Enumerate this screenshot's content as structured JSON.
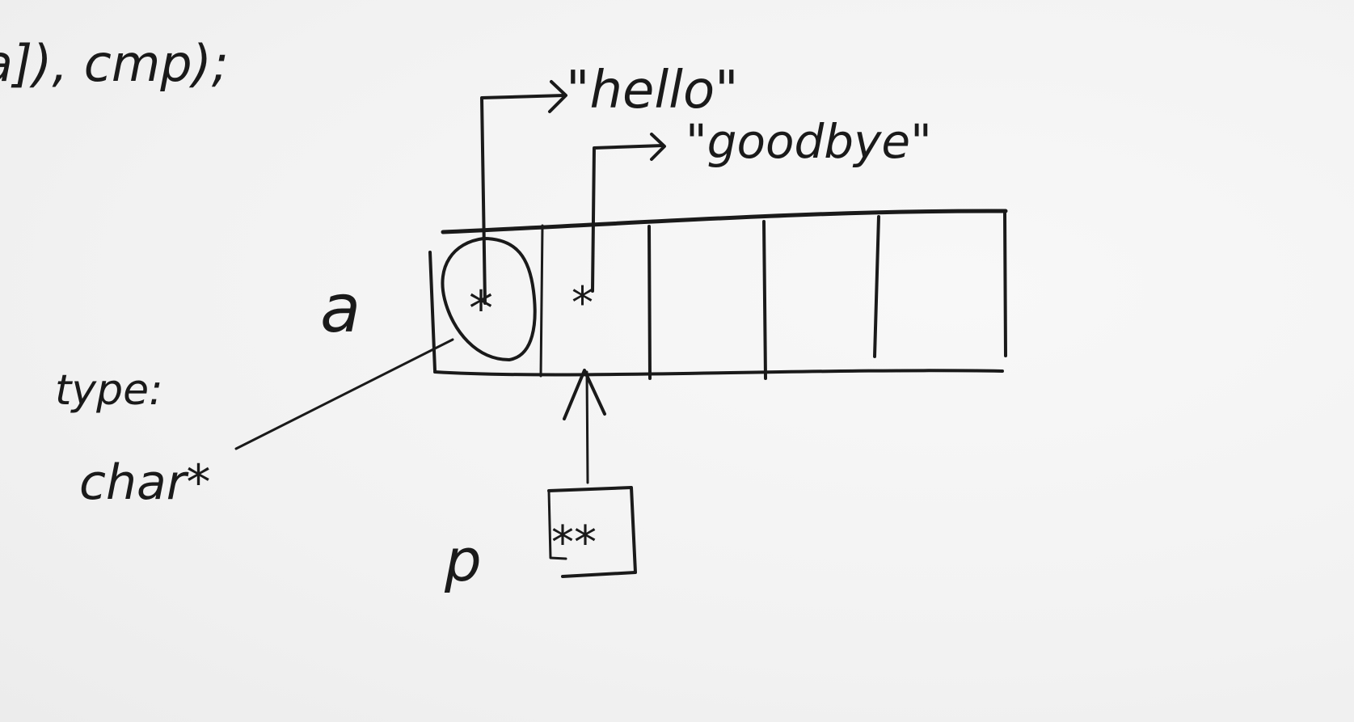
{
  "code_fragment": "a]), cmp);",
  "array": {
    "label": "a",
    "cell_count": 5,
    "cell0_content": "*",
    "cell1_content": "*"
  },
  "strings": {
    "first": "\"hello\"",
    "second": "\"goodbye\""
  },
  "type_note": {
    "line1": "type:",
    "line2": "char*"
  },
  "pointer": {
    "label": "p",
    "content": "**"
  }
}
